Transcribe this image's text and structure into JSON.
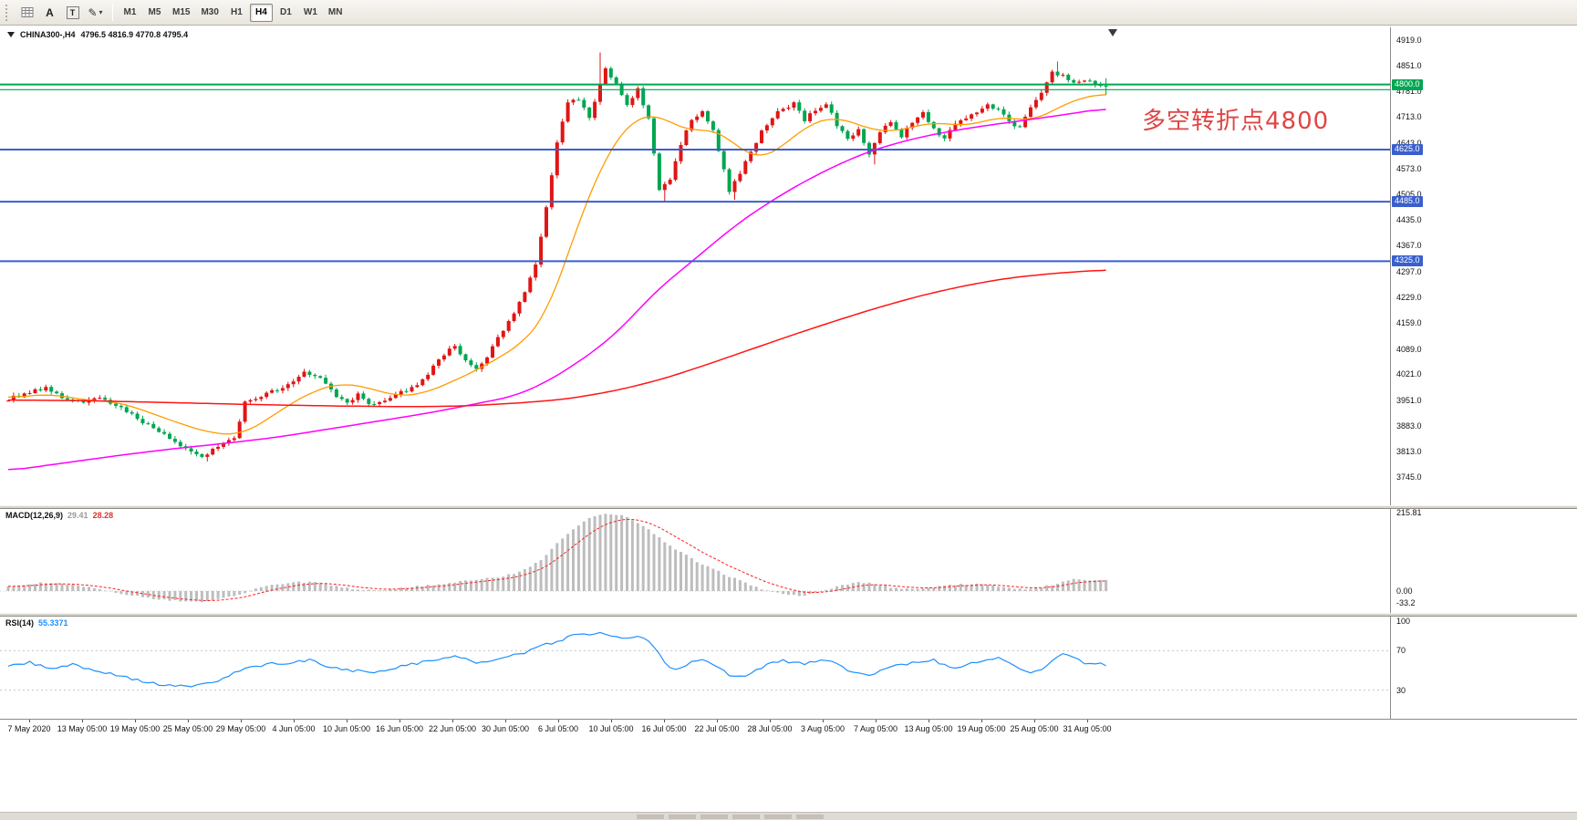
{
  "toolbar": {
    "tool_glyphs": {
      "a": "A",
      "t": "T",
      "pencil": "✎",
      "caret": "▾"
    },
    "timeframes": [
      "M1",
      "M5",
      "M15",
      "M30",
      "H1",
      "H4",
      "D1",
      "W1",
      "MN"
    ],
    "active_timeframe": "H4"
  },
  "chart": {
    "title_symbol": "CHINA300-,H4",
    "title_ohlc": "4796.5 4816.9 4770.8 4795.4",
    "annotation": {
      "text": "多空转折点4800",
      "color": "#e04545"
    },
    "price_scale": {
      "badges": [
        {
          "value": 4800.0,
          "color": "#00a651"
        },
        {
          "value": 4625.0,
          "color": "#3a5fcd"
        },
        {
          "value": 4485.0,
          "color": "#3a5fcd"
        },
        {
          "value": 4325.0,
          "color": "#3a5fcd"
        }
      ]
    }
  },
  "macd": {
    "label": "MACD(12,26,9)",
    "value_main": "29.41",
    "value_signal": "28.28",
    "scale_labels": [
      {
        "v": 215.81,
        "t": "215.81"
      },
      {
        "v": 0,
        "t": "0.00"
      },
      {
        "v": -33.2,
        "t": "-33.2"
      }
    ]
  },
  "rsi": {
    "label": "RSI(14)",
    "value": "55.3371",
    "scale_labels": [
      {
        "v": 100,
        "t": "100"
      },
      {
        "v": 70,
        "t": "70"
      },
      {
        "v": 30,
        "t": "30"
      }
    ]
  },
  "chart_data": {
    "type": "candlestick",
    "symbol": "CHINA300-",
    "timeframe": "H4",
    "bar_count": 205,
    "last_bar_ohlc": {
      "open": 4796.5,
      "high": 4816.9,
      "low": 4770.8,
      "close": 4795.4
    },
    "up_color": "#e01515",
    "down_color": "#00a651",
    "y_ticks": [
      4919,
      4851,
      4781,
      4713,
      4643,
      4573,
      4505,
      4435,
      4367,
      4297,
      4229,
      4159,
      4089,
      4021,
      3951,
      3883,
      3813,
      3745
    ],
    "y_range": [
      3670,
      4940
    ],
    "x_labels": [
      "7 May 2020",
      "13 May 05:00",
      "19 May 05:00",
      "25 May 05:00",
      "29 May 05:00",
      "4 Jun 05:00",
      "10 Jun 05:00",
      "16 Jun 05:00",
      "22 Jun 05:00",
      "30 Jun 05:00",
      "6 Jul 05:00",
      "10 Jul 05:00",
      "16 Jul 05:00",
      "22 Jul 05:00",
      "28 Jul 05:00",
      "3 Aug 05:00",
      "7 Aug 05:00",
      "13 Aug 05:00",
      "19 Aug 05:00",
      "25 Aug 05:00",
      "31 Aug 05:00"
    ],
    "horizontal_lines": [
      {
        "price": 4800,
        "color": "#00a651",
        "width": 2
      },
      {
        "price": 4786,
        "color": "#00a651",
        "width": 1.2
      },
      {
        "price": 4625,
        "color": "#3a5fcd",
        "width": 2
      },
      {
        "price": 4485,
        "color": "#3a5fcd",
        "width": 2
      },
      {
        "price": 4325,
        "color": "#3a5fcd",
        "width": 2
      }
    ],
    "price_path": [
      [
        0,
        3950
      ],
      [
        4,
        3968
      ],
      [
        8,
        3985
      ],
      [
        11,
        3960
      ],
      [
        14,
        3945
      ],
      [
        18,
        3958
      ],
      [
        22,
        3930
      ],
      [
        26,
        3892
      ],
      [
        30,
        3862
      ],
      [
        34,
        3822
      ],
      [
        37,
        3800
      ],
      [
        40,
        3825
      ],
      [
        43,
        3848
      ],
      [
        45,
        3945
      ],
      [
        48,
        3962
      ],
      [
        51,
        3980
      ],
      [
        54,
        4005
      ],
      [
        56,
        4028
      ],
      [
        59,
        4008
      ],
      [
        62,
        3962
      ],
      [
        64,
        3942
      ],
      [
        66,
        3965
      ],
      [
        68,
        3938
      ],
      [
        71,
        3952
      ],
      [
        74,
        3972
      ],
      [
        77,
        3990
      ],
      [
        80,
        4040
      ],
      [
        82,
        4075
      ],
      [
        84,
        4098
      ],
      [
        86,
        4060
      ],
      [
        88,
        4032
      ],
      [
        90,
        4068
      ],
      [
        92,
        4120
      ],
      [
        95,
        4185
      ],
      [
        97,
        4240
      ],
      [
        99,
        4320
      ],
      [
        101,
        4470
      ],
      [
        103,
        4640
      ],
      [
        105,
        4752
      ],
      [
        107,
        4762
      ],
      [
        109,
        4710
      ],
      [
        111,
        4798
      ],
      [
        112,
        4842
      ],
      [
        114,
        4802
      ],
      [
        116,
        4742
      ],
      [
        118,
        4790
      ],
      [
        120,
        4706
      ],
      [
        122,
        4520
      ],
      [
        124,
        4548
      ],
      [
        126,
        4640
      ],
      [
        128,
        4708
      ],
      [
        130,
        4728
      ],
      [
        132,
        4680
      ],
      [
        134,
        4570
      ],
      [
        135,
        4512
      ],
      [
        137,
        4560
      ],
      [
        139,
        4618
      ],
      [
        141,
        4672
      ],
      [
        144,
        4725
      ],
      [
        147,
        4748
      ],
      [
        149,
        4705
      ],
      [
        151,
        4732
      ],
      [
        153,
        4748
      ],
      [
        155,
        4692
      ],
      [
        157,
        4652
      ],
      [
        159,
        4682
      ],
      [
        161,
        4612
      ],
      [
        163,
        4675
      ],
      [
        165,
        4702
      ],
      [
        167,
        4662
      ],
      [
        169,
        4700
      ],
      [
        171,
        4722
      ],
      [
        173,
        4682
      ],
      [
        175,
        4652
      ],
      [
        177,
        4698
      ],
      [
        179,
        4712
      ],
      [
        181,
        4722
      ],
      [
        183,
        4742
      ],
      [
        185,
        4732
      ],
      [
        187,
        4702
      ],
      [
        189,
        4682
      ],
      [
        191,
        4738
      ],
      [
        193,
        4775
      ],
      [
        195,
        4832
      ],
      [
        197,
        4822
      ],
      [
        199,
        4802
      ],
      [
        201,
        4812
      ],
      [
        203,
        4802
      ],
      [
        204,
        4795
      ]
    ],
    "key_extremes": [
      {
        "i": 37,
        "low": 3787
      },
      {
        "i": 110,
        "high": 4886
      },
      {
        "i": 122,
        "low": 4483
      },
      {
        "i": 135,
        "low": 4490
      },
      {
        "i": 161,
        "low": 4585
      },
      {
        "i": 195,
        "high": 4862
      }
    ],
    "moving_averages": [
      {
        "name": "fast",
        "color": "#ff9c00",
        "width": 1.3,
        "points": [
          [
            0,
            3958
          ],
          [
            8,
            3968
          ],
          [
            14,
            3952
          ],
          [
            20,
            3948
          ],
          [
            26,
            3920
          ],
          [
            32,
            3888
          ],
          [
            38,
            3862
          ],
          [
            43,
            3858
          ],
          [
            47,
            3888
          ],
          [
            52,
            3938
          ],
          [
            57,
            3978
          ],
          [
            62,
            3998
          ],
          [
            67,
            3985
          ],
          [
            72,
            3962
          ],
          [
            77,
            3968
          ],
          [
            82,
            3998
          ],
          [
            87,
            4032
          ],
          [
            92,
            4072
          ],
          [
            96,
            4110
          ],
          [
            100,
            4180
          ],
          [
            103,
            4300
          ],
          [
            106,
            4430
          ],
          [
            109,
            4540
          ],
          [
            112,
            4630
          ],
          [
            115,
            4690
          ],
          [
            118,
            4718
          ],
          [
            121,
            4718
          ],
          [
            124,
            4690
          ],
          [
            127,
            4672
          ],
          [
            130,
            4682
          ],
          [
            133,
            4668
          ],
          [
            136,
            4625
          ],
          [
            139,
            4600
          ],
          [
            142,
            4612
          ],
          [
            145,
            4648
          ],
          [
            148,
            4685
          ],
          [
            151,
            4705
          ],
          [
            154,
            4712
          ],
          [
            157,
            4698
          ],
          [
            160,
            4680
          ],
          [
            163,
            4672
          ],
          [
            166,
            4678
          ],
          [
            169,
            4688
          ],
          [
            172,
            4700
          ],
          [
            175,
            4692
          ],
          [
            178,
            4688
          ],
          [
            181,
            4700
          ],
          [
            184,
            4712
          ],
          [
            187,
            4710
          ],
          [
            190,
            4700
          ],
          [
            193,
            4720
          ],
          [
            196,
            4745
          ],
          [
            199,
            4762
          ],
          [
            202,
            4772
          ],
          [
            204,
            4776
          ]
        ]
      },
      {
        "name": "medium",
        "color": "#ff00ff",
        "width": 1.5,
        "points": [
          [
            0,
            3762
          ],
          [
            10,
            3782
          ],
          [
            20,
            3802
          ],
          [
            30,
            3820
          ],
          [
            40,
            3835
          ],
          [
            50,
            3852
          ],
          [
            60,
            3875
          ],
          [
            70,
            3898
          ],
          [
            80,
            3922
          ],
          [
            88,
            3945
          ],
          [
            94,
            3962
          ],
          [
            100,
            4000
          ],
          [
            105,
            4045
          ],
          [
            110,
            4095
          ],
          [
            115,
            4160
          ],
          [
            120,
            4240
          ],
          [
            125,
            4300
          ],
          [
            130,
            4360
          ],
          [
            135,
            4420
          ],
          [
            140,
            4470
          ],
          [
            145,
            4515
          ],
          [
            150,
            4555
          ],
          [
            155,
            4590
          ],
          [
            160,
            4620
          ],
          [
            165,
            4642
          ],
          [
            170,
            4660
          ],
          [
            175,
            4674
          ],
          [
            180,
            4686
          ],
          [
            185,
            4696
          ],
          [
            190,
            4706
          ],
          [
            195,
            4716
          ],
          [
            200,
            4727
          ],
          [
            204,
            4736
          ]
        ]
      },
      {
        "name": "slow",
        "color": "#ff1414",
        "width": 1.5,
        "points": [
          [
            0,
            3952
          ],
          [
            15,
            3950
          ],
          [
            30,
            3945
          ],
          [
            45,
            3940
          ],
          [
            60,
            3936
          ],
          [
            75,
            3934
          ],
          [
            85,
            3936
          ],
          [
            95,
            3944
          ],
          [
            102,
            3952
          ],
          [
            108,
            3964
          ],
          [
            115,
            3984
          ],
          [
            122,
            4010
          ],
          [
            130,
            4048
          ],
          [
            138,
            4088
          ],
          [
            146,
            4128
          ],
          [
            154,
            4166
          ],
          [
            162,
            4202
          ],
          [
            170,
            4234
          ],
          [
            178,
            4260
          ],
          [
            186,
            4280
          ],
          [
            194,
            4292
          ],
          [
            204,
            4302
          ]
        ]
      }
    ],
    "macd_path": [
      [
        0,
        12
      ],
      [
        6,
        22
      ],
      [
        12,
        18
      ],
      [
        18,
        2
      ],
      [
        24,
        -14
      ],
      [
        30,
        -26
      ],
      [
        36,
        -30
      ],
      [
        42,
        -12
      ],
      [
        48,
        14
      ],
      [
        54,
        26
      ],
      [
        58,
        22
      ],
      [
        63,
        8
      ],
      [
        68,
        2
      ],
      [
        73,
        8
      ],
      [
        78,
        16
      ],
      [
        84,
        26
      ],
      [
        90,
        36
      ],
      [
        95,
        52
      ],
      [
        99,
        86
      ],
      [
        102,
        130
      ],
      [
        105,
        172
      ],
      [
        108,
        200
      ],
      [
        111,
        214
      ],
      [
        114,
        208
      ],
      [
        117,
        188
      ],
      [
        120,
        158
      ],
      [
        123,
        126
      ],
      [
        126,
        98
      ],
      [
        129,
        74
      ],
      [
        132,
        54
      ],
      [
        135,
        34
      ],
      [
        138,
        16
      ],
      [
        141,
        2
      ],
      [
        144,
        -10
      ],
      [
        147,
        -14
      ],
      [
        150,
        -6
      ],
      [
        153,
        8
      ],
      [
        156,
        20
      ],
      [
        159,
        24
      ],
      [
        162,
        16
      ],
      [
        165,
        8
      ],
      [
        168,
        4
      ],
      [
        171,
        8
      ],
      [
        174,
        14
      ],
      [
        177,
        18
      ],
      [
        180,
        20
      ],
      [
        183,
        16
      ],
      [
        186,
        8
      ],
      [
        189,
        4
      ],
      [
        192,
        10
      ],
      [
        195,
        22
      ],
      [
        198,
        32
      ],
      [
        201,
        30
      ],
      [
        204,
        29
      ]
    ],
    "macd_colors": {
      "histogram": "#bdbdbd",
      "signal": "#ff2020"
    },
    "macd_values": {
      "main": 29.41,
      "signal": 28.28
    },
    "macd_scale_max": 215.81,
    "rsi_path": [
      [
        0,
        55
      ],
      [
        4,
        58
      ],
      [
        8,
        52
      ],
      [
        12,
        56
      ],
      [
        16,
        50
      ],
      [
        20,
        46
      ],
      [
        24,
        40
      ],
      [
        28,
        36
      ],
      [
        32,
        34
      ],
      [
        36,
        35
      ],
      [
        40,
        42
      ],
      [
        44,
        52
      ],
      [
        48,
        56
      ],
      [
        52,
        58
      ],
      [
        56,
        61
      ],
      [
        60,
        53
      ],
      [
        64,
        50
      ],
      [
        68,
        47
      ],
      [
        72,
        53
      ],
      [
        76,
        57
      ],
      [
        80,
        62
      ],
      [
        84,
        64
      ],
      [
        87,
        56
      ],
      [
        90,
        60
      ],
      [
        93,
        64
      ],
      [
        96,
        68
      ],
      [
        99,
        74
      ],
      [
        102,
        80
      ],
      [
        105,
        85
      ],
      [
        108,
        87
      ],
      [
        110,
        88
      ],
      [
        112,
        86
      ],
      [
        114,
        82
      ],
      [
        116,
        84
      ],
      [
        118,
        83
      ],
      [
        120,
        74
      ],
      [
        122,
        57
      ],
      [
        124,
        50
      ],
      [
        126,
        55
      ],
      [
        128,
        61
      ],
      [
        130,
        58
      ],
      [
        132,
        52
      ],
      [
        134,
        46
      ],
      [
        136,
        43
      ],
      [
        138,
        48
      ],
      [
        140,
        53
      ],
      [
        142,
        57
      ],
      [
        144,
        60
      ],
      [
        146,
        58
      ],
      [
        148,
        56
      ],
      [
        150,
        59
      ],
      [
        152,
        60
      ],
      [
        154,
        56
      ],
      [
        156,
        51
      ],
      [
        158,
        47
      ],
      [
        160,
        44
      ],
      [
        162,
        50
      ],
      [
        164,
        54
      ],
      [
        166,
        56
      ],
      [
        168,
        57
      ],
      [
        170,
        59
      ],
      [
        172,
        61
      ],
      [
        174,
        55
      ],
      [
        176,
        52
      ],
      [
        178,
        56
      ],
      [
        180,
        59
      ],
      [
        182,
        61
      ],
      [
        184,
        63
      ],
      [
        186,
        58
      ],
      [
        188,
        52
      ],
      [
        190,
        47
      ],
      [
        192,
        52
      ],
      [
        194,
        60
      ],
      [
        196,
        66
      ],
      [
        198,
        62
      ],
      [
        200,
        58
      ],
      [
        202,
        57
      ],
      [
        204,
        55.3
      ]
    ],
    "rsi_color": "#1e90ff",
    "rsi_levels": [
      70,
      30
    ],
    "rsi_value": 55.3371
  }
}
